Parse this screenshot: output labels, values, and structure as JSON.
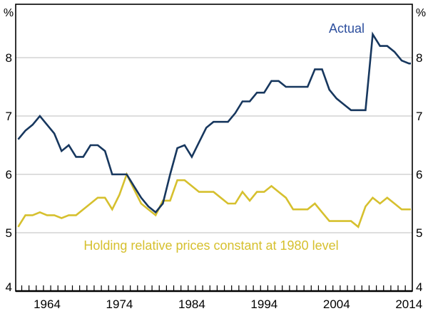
{
  "chart_data": {
    "type": "line",
    "title": "",
    "unit_left": "%",
    "unit_right": "%",
    "x_range": {
      "start": 1960,
      "end": 2014
    },
    "x_ticks": [
      1964,
      1974,
      1984,
      1994,
      2004,
      2014
    ],
    "y_ticks": [
      4,
      5,
      6,
      7,
      8
    ],
    "grid_values": [
      5,
      6,
      7,
      8
    ],
    "ylim": [
      4,
      8.9
    ],
    "grid_color": "#c9c9c9",
    "axis_color": "#000000",
    "series": [
      {
        "id": "constant-1980",
        "name": "Holding relative prices constant at 1980 level",
        "color": "#d6c02e",
        "values": [
          5.1,
          5.3,
          5.3,
          5.35,
          5.3,
          5.3,
          5.25,
          5.3,
          5.3,
          5.4,
          5.5,
          5.6,
          5.6,
          5.4,
          5.65,
          6.0,
          5.75,
          5.5,
          5.4,
          5.3,
          5.55,
          5.55,
          5.9,
          5.9,
          5.8,
          5.7,
          5.7,
          5.7,
          5.6,
          5.5,
          5.5,
          5.7,
          5.55,
          5.7,
          5.7,
          5.8,
          5.7,
          5.6,
          5.4,
          5.4,
          5.4,
          5.5,
          5.35,
          5.2,
          5.2,
          5.2,
          5.2,
          5.1,
          5.45,
          5.6,
          5.5,
          5.6,
          5.5,
          5.4,
          5.4
        ]
      },
      {
        "id": "actual",
        "name": "Actual",
        "color": "#17375e",
        "values": [
          6.6,
          6.75,
          6.85,
          7.0,
          6.85,
          6.7,
          6.4,
          6.5,
          6.3,
          6.3,
          6.5,
          6.5,
          6.4,
          6.0,
          6.0,
          6.0,
          5.8,
          5.6,
          5.45,
          5.35,
          5.5,
          6.0,
          6.45,
          6.5,
          6.3,
          6.55,
          6.8,
          6.9,
          6.9,
          6.9,
          7.05,
          7.25,
          7.25,
          7.4,
          7.4,
          7.6,
          7.6,
          7.5,
          7.5,
          7.5,
          7.5,
          7.8,
          7.8,
          7.45,
          7.3,
          7.2,
          7.1,
          7.1,
          7.1,
          8.4,
          8.2,
          8.2,
          8.1,
          7.95,
          7.9
        ]
      }
    ],
    "annotations": [
      {
        "text": "Actual",
        "color": "#2d4f9e"
      },
      {
        "text": "Holding relative prices constant at 1980 level",
        "color": "#d6c02e"
      }
    ]
  }
}
